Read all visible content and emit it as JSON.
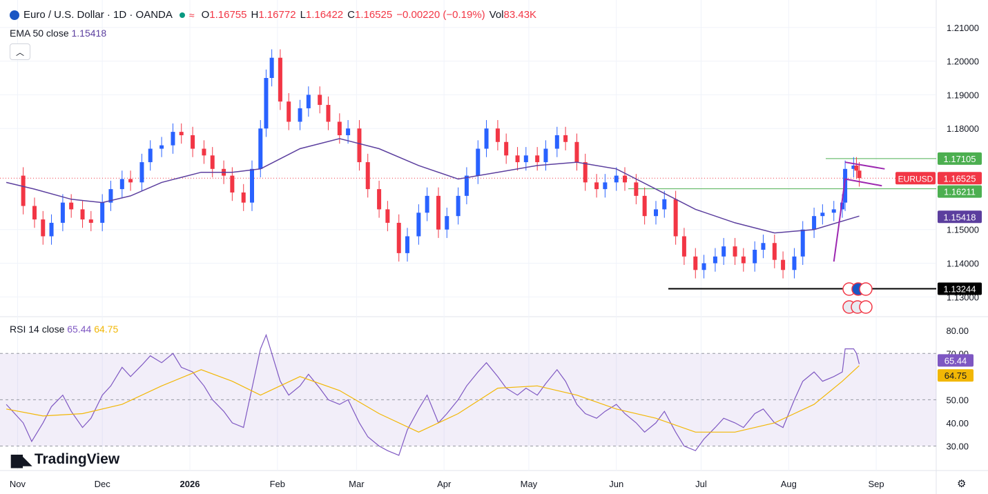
{
  "header": {
    "symbol": "Euro / U.S. Dollar · 1D · OANDA",
    "o_label": "O",
    "o_value": "1.16755",
    "h_label": "H",
    "h_value": "1.16772",
    "l_label": "L",
    "l_value": "1.16422",
    "c_label": "C",
    "c_value": "1.16525",
    "change": "−0.00220 (−0.19%)",
    "vol_label": "Vol",
    "vol_value": "83.43K"
  },
  "ema": {
    "name": "EMA 50 close",
    "value": "1.15418"
  },
  "rsi_legend": {
    "name": "RSI 14 close",
    "rsi_value": "65.44",
    "ma_value": "64.75"
  },
  "branding": "TradingView",
  "colors": {
    "up": "#2962ff",
    "down": "#f23645",
    "ema": "#5b3e9e",
    "rsi": "#7e57c2",
    "rsi_ma": "#f2b705",
    "green_line": "#4caf50",
    "pattern": "#9c27b0"
  },
  "chart_data": [
    {
      "type": "candlestick",
      "title": "Euro / U.S. Dollar · 1D · OANDA",
      "ylim": [
        1.127,
        1.212
      ],
      "y_ticks": [
        "1.21000",
        "1.20000",
        "1.19000",
        "1.18000",
        "1.15000",
        "1.14000",
        "1.13000"
      ],
      "x_ticks": [
        {
          "label": "Nov",
          "date": "2025-11-01"
        },
        {
          "label": "Dec",
          "date": "2025-12-01"
        },
        {
          "label": "2026",
          "date": "2026-01-01"
        },
        {
          "label": "Feb",
          "date": "2026-02-01"
        },
        {
          "label": "Mar",
          "date": "2026-03-01"
        },
        {
          "label": "Apr",
          "date": "2026-04-01"
        },
        {
          "label": "May",
          "date": "2026-05-01"
        },
        {
          "label": "Jun",
          "date": "2026-06-01"
        },
        {
          "label": "Jul",
          "date": "2026-07-01"
        },
        {
          "label": "Aug",
          "date": "2026-08-01"
        },
        {
          "label": "Sep",
          "date": "2026-09-01"
        }
      ],
      "x_range": [
        "2025-10-27",
        "2026-09-22"
      ],
      "close_series": [
        [
          "2025-10-28",
          1.166
        ],
        [
          "2025-11-03",
          1.157
        ],
        [
          "2025-11-07",
          1.153
        ],
        [
          "2025-11-10",
          1.148
        ],
        [
          "2025-11-13",
          1.152
        ],
        [
          "2025-11-17",
          1.158
        ],
        [
          "2025-11-20",
          1.156
        ],
        [
          "2025-11-24",
          1.153
        ],
        [
          "2025-11-27",
          1.152
        ],
        [
          "2025-12-01",
          1.158
        ],
        [
          "2025-12-04",
          1.162
        ],
        [
          "2025-12-08",
          1.165
        ],
        [
          "2025-12-11",
          1.164
        ],
        [
          "2025-12-15",
          1.17
        ],
        [
          "2025-12-18",
          1.174
        ],
        [
          "2025-12-22",
          1.175
        ],
        [
          "2025-12-26",
          1.179
        ],
        [
          "2025-12-29",
          1.178
        ],
        [
          "2026-01-02",
          1.174
        ],
        [
          "2026-01-06",
          1.172
        ],
        [
          "2026-01-09",
          1.168
        ],
        [
          "2026-01-13",
          1.166
        ],
        [
          "2026-01-16",
          1.161
        ],
        [
          "2026-01-20",
          1.158
        ],
        [
          "2026-01-23",
          1.168
        ],
        [
          "2026-01-26",
          1.18
        ],
        [
          "2026-01-28",
          1.195
        ],
        [
          "2026-01-30",
          1.201
        ],
        [
          "2026-02-02",
          1.188
        ],
        [
          "2026-02-05",
          1.182
        ],
        [
          "2026-02-09",
          1.186
        ],
        [
          "2026-02-12",
          1.19
        ],
        [
          "2026-02-16",
          1.187
        ],
        [
          "2026-02-19",
          1.182
        ],
        [
          "2026-02-23",
          1.178
        ],
        [
          "2026-02-26",
          1.18
        ],
        [
          "2026-03-02",
          1.17
        ],
        [
          "2026-03-05",
          1.162
        ],
        [
          "2026-03-09",
          1.156
        ],
        [
          "2026-03-12",
          1.152
        ],
        [
          "2026-03-16",
          1.143
        ],
        [
          "2026-03-19",
          1.148
        ],
        [
          "2026-03-23",
          1.155
        ],
        [
          "2026-03-26",
          1.16
        ],
        [
          "2026-03-30",
          1.15
        ],
        [
          "2026-04-02",
          1.154
        ],
        [
          "2026-04-06",
          1.16
        ],
        [
          "2026-04-09",
          1.166
        ],
        [
          "2026-04-13",
          1.174
        ],
        [
          "2026-04-16",
          1.18
        ],
        [
          "2026-04-20",
          1.176
        ],
        [
          "2026-04-23",
          1.172
        ],
        [
          "2026-04-27",
          1.17
        ],
        [
          "2026-04-30",
          1.172
        ],
        [
          "2026-05-04",
          1.17
        ],
        [
          "2026-05-07",
          1.174
        ],
        [
          "2026-05-11",
          1.178
        ],
        [
          "2026-05-14",
          1.176
        ],
        [
          "2026-05-18",
          1.17
        ],
        [
          "2026-05-21",
          1.164
        ],
        [
          "2026-05-25",
          1.162
        ],
        [
          "2026-05-28",
          1.164
        ],
        [
          "2026-06-01",
          1.166
        ],
        [
          "2026-06-04",
          1.164
        ],
        [
          "2026-06-08",
          1.16
        ],
        [
          "2026-06-11",
          1.154
        ],
        [
          "2026-06-15",
          1.156
        ],
        [
          "2026-06-18",
          1.159
        ],
        [
          "2026-06-22",
          1.148
        ],
        [
          "2026-06-25",
          1.142
        ],
        [
          "2026-06-29",
          1.138
        ],
        [
          "2026-07-02",
          1.14
        ],
        [
          "2026-07-06",
          1.142
        ],
        [
          "2026-07-09",
          1.145
        ],
        [
          "2026-07-13",
          1.142
        ],
        [
          "2026-07-16",
          1.14
        ],
        [
          "2026-07-20",
          1.144
        ],
        [
          "2026-07-23",
          1.146
        ],
        [
          "2026-07-27",
          1.141
        ],
        [
          "2026-07-30",
          1.138
        ],
        [
          "2026-08-03",
          1.142
        ],
        [
          "2026-08-06",
          1.15
        ],
        [
          "2026-08-10",
          1.154
        ],
        [
          "2026-08-13",
          1.155
        ],
        [
          "2026-08-17",
          1.156
        ],
        [
          "2026-08-20",
          1.158
        ],
        [
          "2026-08-21",
          1.168
        ],
        [
          "2026-08-24",
          1.169
        ],
        [
          "2026-08-25",
          1.1675
        ],
        [
          "2026-08-26",
          1.16525
        ]
      ],
      "ema_series": [
        [
          "2025-10-28",
          1.164
        ],
        [
          "2025-11-07",
          1.162
        ],
        [
          "2025-11-20",
          1.159
        ],
        [
          "2025-12-01",
          1.158
        ],
        [
          "2025-12-11",
          1.16
        ],
        [
          "2025-12-22",
          1.164
        ],
        [
          "2026-01-05",
          1.167
        ],
        [
          "2026-01-16",
          1.167
        ],
        [
          "2026-01-26",
          1.168
        ],
        [
          "2026-02-09",
          1.174
        ],
        [
          "2026-02-23",
          1.177
        ],
        [
          "2026-03-09",
          1.174
        ],
        [
          "2026-03-23",
          1.169
        ],
        [
          "2026-04-06",
          1.165
        ],
        [
          "2026-04-20",
          1.167
        ],
        [
          "2026-05-04",
          1.169
        ],
        [
          "2026-05-18",
          1.17
        ],
        [
          "2026-06-01",
          1.168
        ],
        [
          "2026-06-15",
          1.162
        ],
        [
          "2026-06-29",
          1.156
        ],
        [
          "2026-07-13",
          1.152
        ],
        [
          "2026-07-27",
          1.149
        ],
        [
          "2026-08-10",
          1.15
        ],
        [
          "2026-08-26",
          1.154
        ]
      ],
      "last_price": {
        "symbol": "EURUSD",
        "value": 1.16525,
        "label": "1.16525"
      },
      "levels": [
        {
          "value": 1.17105,
          "label": "1.17105",
          "color": "#4caf50"
        },
        {
          "value": 1.16211,
          "label": "1.16211",
          "color": "#4caf50"
        },
        {
          "value": 1.13244,
          "label": "1.13244",
          "color": "#000000"
        }
      ],
      "ema_label": "1.15418"
    },
    {
      "type": "line",
      "title": "RSI 14 close",
      "ylim": [
        20,
        85
      ],
      "y_ticks": [
        "80.00",
        "70.00",
        "50.00",
        "40.00",
        "30.00"
      ],
      "band": [
        30,
        70
      ],
      "rsi_series": [
        [
          "2025-10-28",
          48
        ],
        [
          "2025-11-03",
          40
        ],
        [
          "2025-11-06",
          32
        ],
        [
          "2025-11-10",
          40
        ],
        [
          "2025-11-13",
          47
        ],
        [
          "2025-11-17",
          52
        ],
        [
          "2025-11-20",
          45
        ],
        [
          "2025-11-24",
          38
        ],
        [
          "2025-11-27",
          42
        ],
        [
          "2025-12-01",
          52
        ],
        [
          "2025-12-04",
          56
        ],
        [
          "2025-12-08",
          64
        ],
        [
          "2025-12-11",
          60
        ],
        [
          "2025-12-15",
          65
        ],
        [
          "2025-12-18",
          69
        ],
        [
          "2025-12-22",
          66
        ],
        [
          "2025-12-26",
          70
        ],
        [
          "2025-12-29",
          64
        ],
        [
          "2026-01-02",
          62
        ],
        [
          "2026-01-06",
          56
        ],
        [
          "2026-01-09",
          50
        ],
        [
          "2026-01-13",
          45
        ],
        [
          "2026-01-16",
          40
        ],
        [
          "2026-01-20",
          38
        ],
        [
          "2026-01-23",
          55
        ],
        [
          "2026-01-26",
          72
        ],
        [
          "2026-01-28",
          78
        ],
        [
          "2026-02-02",
          58
        ],
        [
          "2026-02-05",
          52
        ],
        [
          "2026-02-09",
          56
        ],
        [
          "2026-02-12",
          61
        ],
        [
          "2026-02-16",
          55
        ],
        [
          "2026-02-19",
          50
        ],
        [
          "2026-02-23",
          48
        ],
        [
          "2026-02-26",
          50
        ],
        [
          "2026-03-02",
          40
        ],
        [
          "2026-03-05",
          34
        ],
        [
          "2026-03-09",
          30
        ],
        [
          "2026-03-12",
          28
        ],
        [
          "2026-03-16",
          26
        ],
        [
          "2026-03-19",
          37
        ],
        [
          "2026-03-23",
          46
        ],
        [
          "2026-03-26",
          52
        ],
        [
          "2026-03-30",
          40
        ],
        [
          "2026-04-02",
          44
        ],
        [
          "2026-04-06",
          50
        ],
        [
          "2026-04-09",
          56
        ],
        [
          "2026-04-13",
          62
        ],
        [
          "2026-04-16",
          66
        ],
        [
          "2026-04-20",
          60
        ],
        [
          "2026-04-23",
          55
        ],
        [
          "2026-04-27",
          52
        ],
        [
          "2026-04-30",
          55
        ],
        [
          "2026-05-04",
          52
        ],
        [
          "2026-05-07",
          57
        ],
        [
          "2026-05-11",
          63
        ],
        [
          "2026-05-14",
          58
        ],
        [
          "2026-05-18",
          48
        ],
        [
          "2026-05-21",
          44
        ],
        [
          "2026-05-25",
          42
        ],
        [
          "2026-05-28",
          45
        ],
        [
          "2026-06-01",
          48
        ],
        [
          "2026-06-04",
          44
        ],
        [
          "2026-06-08",
          40
        ],
        [
          "2026-06-11",
          36
        ],
        [
          "2026-06-15",
          40
        ],
        [
          "2026-06-18",
          45
        ],
        [
          "2026-06-22",
          36
        ],
        [
          "2026-06-25",
          30
        ],
        [
          "2026-06-29",
          28
        ],
        [
          "2026-07-02",
          33
        ],
        [
          "2026-07-06",
          38
        ],
        [
          "2026-07-09",
          42
        ],
        [
          "2026-07-13",
          40
        ],
        [
          "2026-07-16",
          38
        ],
        [
          "2026-07-20",
          44
        ],
        [
          "2026-07-23",
          46
        ],
        [
          "2026-07-27",
          40
        ],
        [
          "2026-07-30",
          38
        ],
        [
          "2026-08-03",
          50
        ],
        [
          "2026-08-06",
          58
        ],
        [
          "2026-08-10",
          62
        ],
        [
          "2026-08-13",
          58
        ],
        [
          "2026-08-17",
          60
        ],
        [
          "2026-08-20",
          62
        ],
        [
          "2026-08-21",
          72
        ],
        [
          "2026-08-24",
          72
        ],
        [
          "2026-08-25",
          70
        ],
        [
          "2026-08-26",
          65.44
        ]
      ],
      "rsi_ma_series": [
        [
          "2025-10-28",
          46
        ],
        [
          "2025-11-10",
          43
        ],
        [
          "2025-11-24",
          44
        ],
        [
          "2025-12-08",
          48
        ],
        [
          "2025-12-22",
          56
        ],
        [
          "2026-01-05",
          63
        ],
        [
          "2026-01-16",
          58
        ],
        [
          "2026-01-26",
          52
        ],
        [
          "2026-02-09",
          60
        ],
        [
          "2026-02-23",
          54
        ],
        [
          "2026-03-09",
          44
        ],
        [
          "2026-03-23",
          36
        ],
        [
          "2026-04-06",
          44
        ],
        [
          "2026-04-20",
          55
        ],
        [
          "2026-05-04",
          56
        ],
        [
          "2026-05-18",
          52
        ],
        [
          "2026-06-01",
          46
        ],
        [
          "2026-06-15",
          42
        ],
        [
          "2026-06-29",
          36
        ],
        [
          "2026-07-13",
          36
        ],
        [
          "2026-07-27",
          40
        ],
        [
          "2026-08-10",
          48
        ],
        [
          "2026-08-20",
          58
        ],
        [
          "2026-08-26",
          64.75
        ]
      ],
      "rsi_label": "65.44",
      "ma_label": "64.75"
    }
  ]
}
